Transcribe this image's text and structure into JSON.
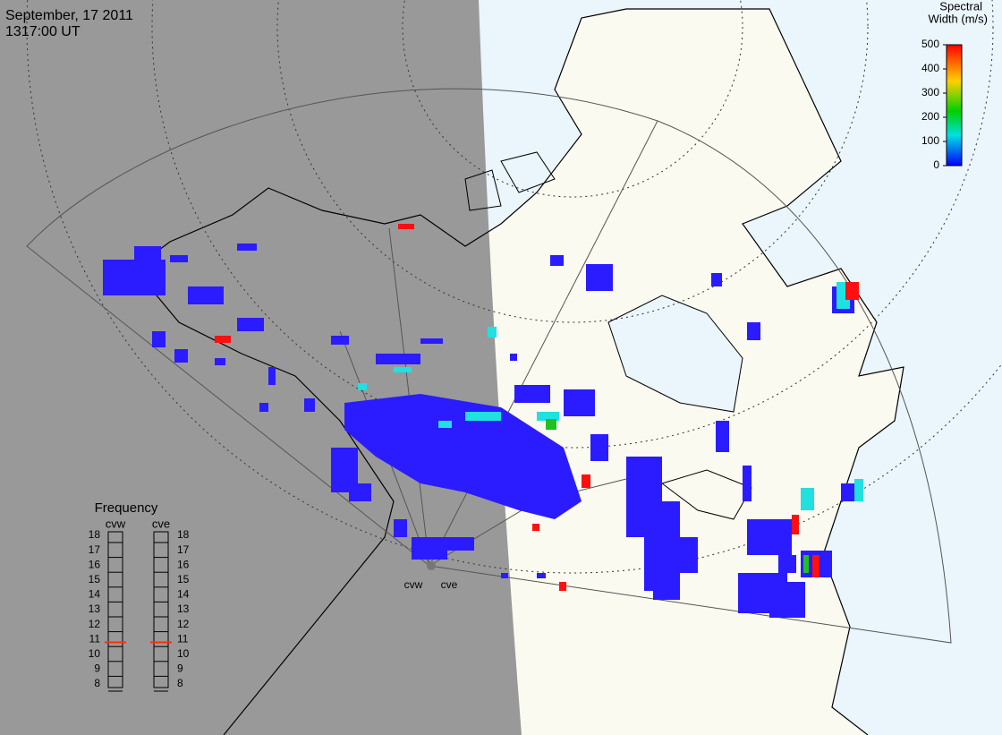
{
  "header": {
    "date": "September, 17 2011",
    "time": "1317:00 UT"
  },
  "colorbar": {
    "title": [
      "Spectral",
      "Width (m/s)"
    ],
    "lim": [
      0,
      500
    ],
    "ticks": [
      0,
      100,
      200,
      300,
      400,
      500
    ]
  },
  "frequency": {
    "title": "Frequency",
    "lim": [
      8,
      18
    ],
    "ticks": [
      8,
      9,
      10,
      11,
      12,
      13,
      14,
      15,
      16,
      17,
      18
    ],
    "radars": [
      {
        "name": "cvw",
        "value": 10.8
      },
      {
        "name": "cve",
        "value": 10.8
      }
    ]
  },
  "map_labels": [
    "cvw",
    "cve"
  ]
}
